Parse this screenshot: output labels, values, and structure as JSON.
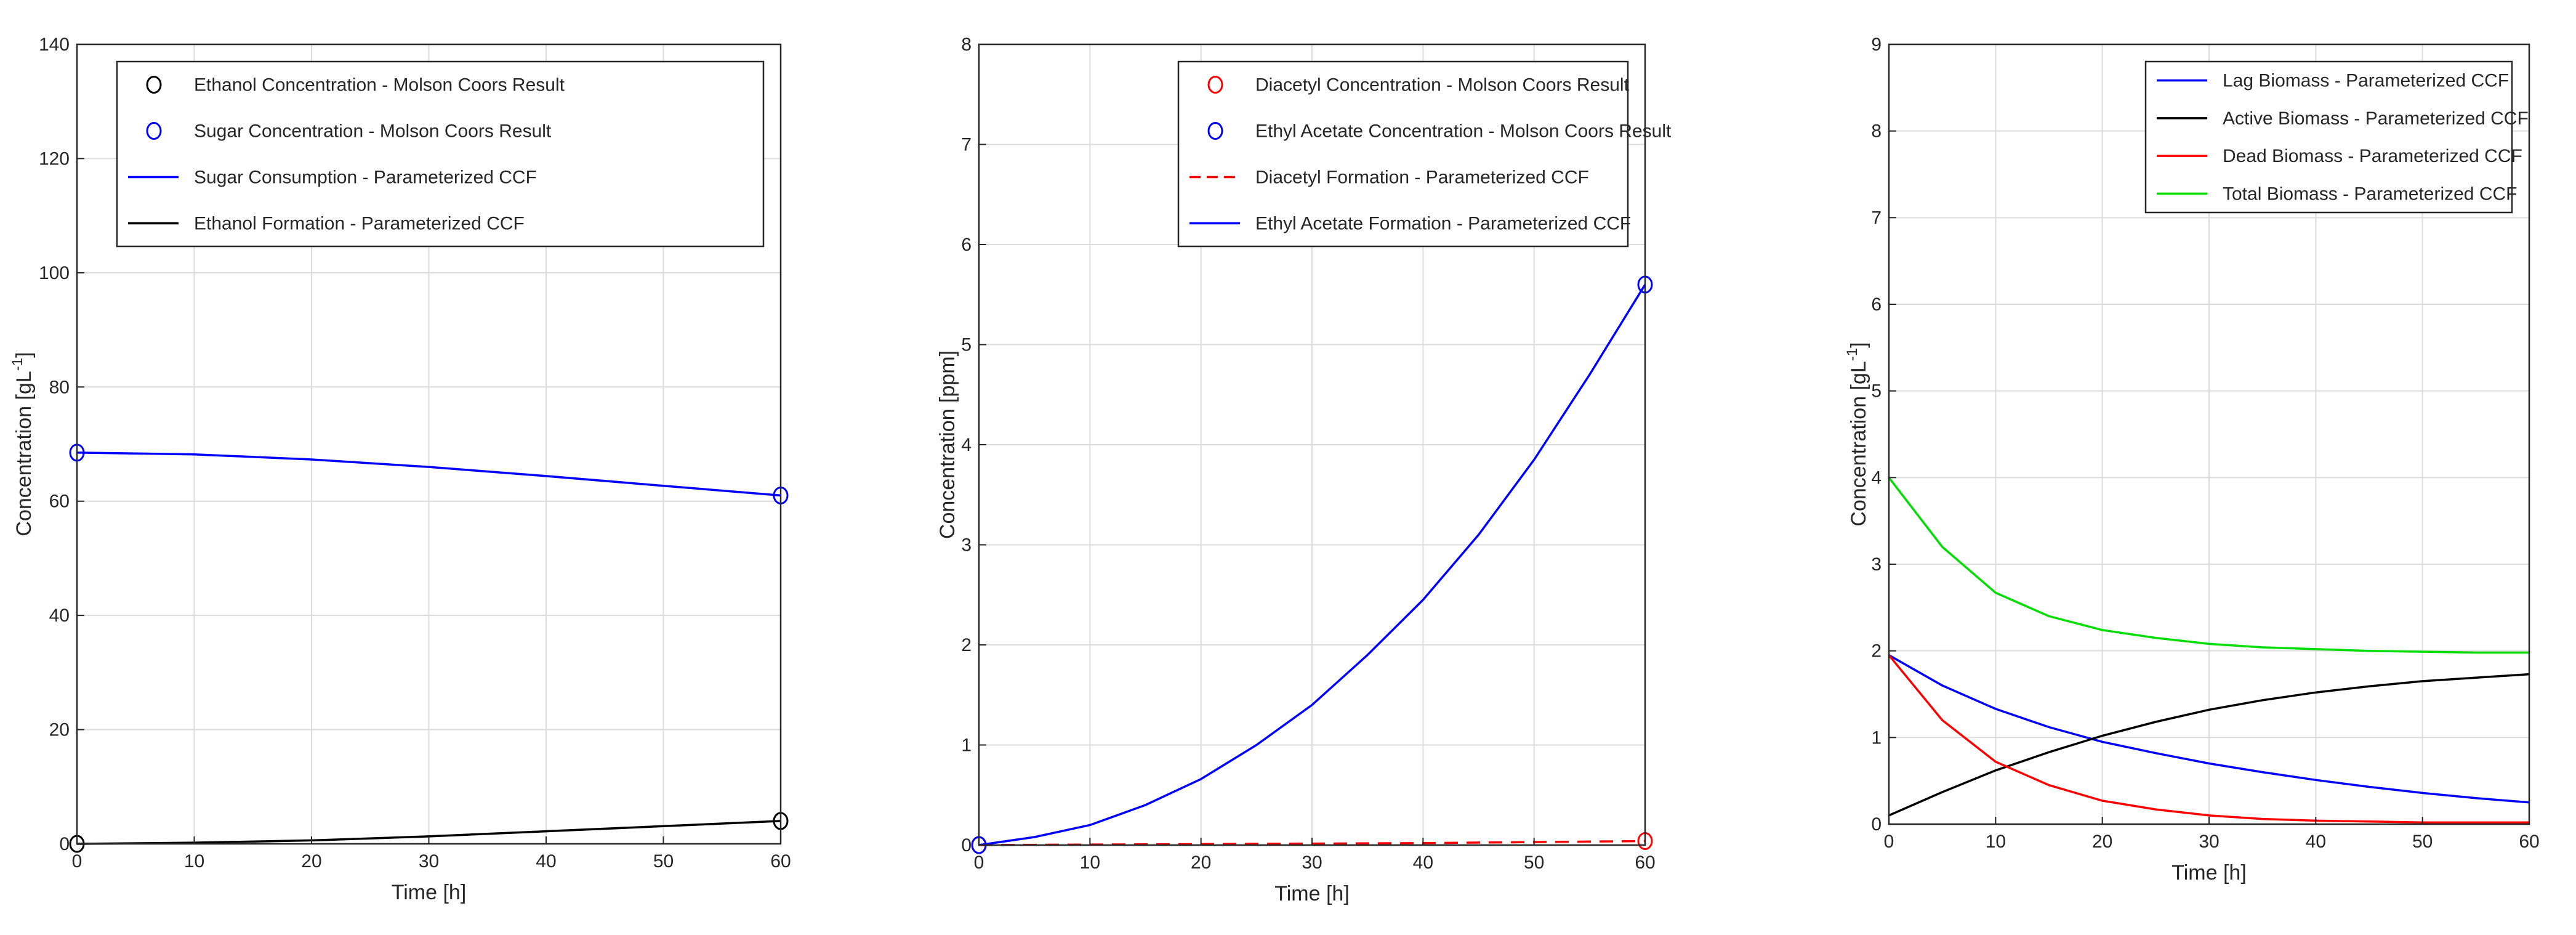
{
  "chart_data": [
    {
      "type": "line",
      "title": "",
      "xlabel": "Time [h]",
      "ylabel": "Concentration [gL",
      "ylabel_sup": "-1",
      "ylabel_close": "]",
      "xlim": [
        0,
        60
      ],
      "ylim": [
        0,
        140
      ],
      "xticks": [
        0,
        10,
        20,
        30,
        40,
        50,
        60
      ],
      "yticks": [
        0,
        20,
        40,
        60,
        80,
        100,
        120,
        140
      ],
      "grid": true,
      "legend_position": "top-right",
      "series": [
        {
          "name": "Ethanol Concentration - Molson Coors Result",
          "kind": "markers",
          "color": "#000000",
          "points": [
            [
              0,
              0
            ],
            [
              60,
              4
            ]
          ]
        },
        {
          "name": "Sugar Concentration - Molson Coors Result",
          "kind": "markers",
          "color": "#0000ff",
          "points": [
            [
              0,
              68.5
            ],
            [
              60,
              61
            ]
          ]
        },
        {
          "name": "Sugar Consumption - Parameterized CCF",
          "kind": "line",
          "color": "#0000ff",
          "dash": "solid",
          "points": [
            [
              0,
              68.5
            ],
            [
              10,
              68.2
            ],
            [
              20,
              67.3
            ],
            [
              30,
              66
            ],
            [
              40,
              64.4
            ],
            [
              50,
              62.7
            ],
            [
              60,
              61
            ]
          ]
        },
        {
          "name": "Ethanol Formation - Parameterized CCF",
          "kind": "line",
          "color": "#000000",
          "dash": "solid",
          "points": [
            [
              0,
              0
            ],
            [
              10,
              0.2
            ],
            [
              20,
              0.6
            ],
            [
              30,
              1.3
            ],
            [
              40,
              2.2
            ],
            [
              50,
              3.1
            ],
            [
              60,
              4
            ]
          ]
        }
      ]
    },
    {
      "type": "line",
      "title": "",
      "xlabel": "Time [h]",
      "ylabel": "Concentration [ppm]",
      "xlim": [
        0,
        60
      ],
      "ylim": [
        0,
        8
      ],
      "xticks": [
        0,
        10,
        20,
        30,
        40,
        50,
        60
      ],
      "yticks": [
        0,
        1,
        2,
        3,
        4,
        5,
        6,
        7,
        8
      ],
      "grid": true,
      "legend_position": "top-right",
      "series": [
        {
          "name": "Diacetyl Concentration - Molson Coors Result",
          "kind": "markers",
          "color": "#ff0000",
          "points": [
            [
              0,
              0
            ],
            [
              60,
              0.04
            ]
          ]
        },
        {
          "name": "Ethyl Acetate Concentration - Molson Coors Result",
          "kind": "markers",
          "color": "#0000ff",
          "points": [
            [
              0,
              0
            ],
            [
              60,
              5.6
            ]
          ]
        },
        {
          "name": "Diacetyl Formation - Parameterized CCF",
          "kind": "line",
          "color": "#ff0000",
          "dash": "dashed",
          "points": [
            [
              0,
              0
            ],
            [
              10,
              0.005
            ],
            [
              20,
              0.01
            ],
            [
              30,
              0.015
            ],
            [
              40,
              0.02
            ],
            [
              50,
              0.03
            ],
            [
              60,
              0.04
            ]
          ]
        },
        {
          "name": "Ethyl Acetate Formation - Parameterized CCF",
          "kind": "line",
          "color": "#0000ff",
          "dash": "solid",
          "points": [
            [
              0,
              0
            ],
            [
              5,
              0.08
            ],
            [
              10,
              0.2
            ],
            [
              15,
              0.4
            ],
            [
              20,
              0.66
            ],
            [
              25,
              1.0
            ],
            [
              30,
              1.4
            ],
            [
              35,
              1.9
            ],
            [
              40,
              2.45
            ],
            [
              45,
              3.1
            ],
            [
              50,
              3.85
            ],
            [
              55,
              4.7
            ],
            [
              60,
              5.6
            ]
          ]
        }
      ]
    },
    {
      "type": "line",
      "title": "",
      "xlabel": "Time [h]",
      "ylabel": "Concentration [gL",
      "ylabel_sup": "-1",
      "ylabel_close": "]",
      "xlim": [
        0,
        60
      ],
      "ylim": [
        0,
        9
      ],
      "xticks": [
        0,
        10,
        20,
        30,
        40,
        50,
        60
      ],
      "yticks": [
        0,
        1,
        2,
        3,
        4,
        5,
        6,
        7,
        8,
        9
      ],
      "grid": true,
      "legend_position": "top-right",
      "series": [
        {
          "name": "Lag Biomass - Parameterized CCF",
          "kind": "line",
          "color": "#0000ff",
          "dash": "solid",
          "points": [
            [
              0,
              1.95
            ],
            [
              5,
              1.6
            ],
            [
              10,
              1.33
            ],
            [
              15,
              1.12
            ],
            [
              20,
              0.95
            ],
            [
              25,
              0.82
            ],
            [
              30,
              0.7
            ],
            [
              35,
              0.6
            ],
            [
              40,
              0.51
            ],
            [
              45,
              0.43
            ],
            [
              50,
              0.36
            ],
            [
              55,
              0.3
            ],
            [
              60,
              0.25
            ]
          ]
        },
        {
          "name": "Active Biomass - Parameterized CCF",
          "kind": "line",
          "color": "#000000",
          "dash": "solid",
          "points": [
            [
              0,
              0.1
            ],
            [
              5,
              0.37
            ],
            [
              10,
              0.62
            ],
            [
              15,
              0.83
            ],
            [
              20,
              1.02
            ],
            [
              25,
              1.18
            ],
            [
              30,
              1.32
            ],
            [
              35,
              1.43
            ],
            [
              40,
              1.52
            ],
            [
              45,
              1.59
            ],
            [
              50,
              1.65
            ],
            [
              55,
              1.69
            ],
            [
              60,
              1.73
            ]
          ]
        },
        {
          "name": "Dead Biomass - Parameterized CCF",
          "kind": "line",
          "color": "#ff0000",
          "dash": "solid",
          "points": [
            [
              0,
              1.95
            ],
            [
              5,
              1.2
            ],
            [
              10,
              0.72
            ],
            [
              15,
              0.45
            ],
            [
              20,
              0.27
            ],
            [
              25,
              0.17
            ],
            [
              30,
              0.1
            ],
            [
              35,
              0.06
            ],
            [
              40,
              0.04
            ],
            [
              45,
              0.03
            ],
            [
              50,
              0.02
            ],
            [
              55,
              0.02
            ],
            [
              60,
              0.02
            ]
          ]
        },
        {
          "name": "Total Biomass - Parameterized CCF",
          "kind": "line",
          "color": "#00dd00",
          "dash": "solid",
          "points": [
            [
              0,
              4.0
            ],
            [
              5,
              3.2
            ],
            [
              10,
              2.67
            ],
            [
              15,
              2.4
            ],
            [
              20,
              2.24
            ],
            [
              25,
              2.15
            ],
            [
              30,
              2.08
            ],
            [
              35,
              2.04
            ],
            [
              40,
              2.02
            ],
            [
              45,
              2.0
            ],
            [
              50,
              1.99
            ],
            [
              55,
              1.98
            ],
            [
              60,
              1.98
            ]
          ]
        }
      ]
    }
  ]
}
